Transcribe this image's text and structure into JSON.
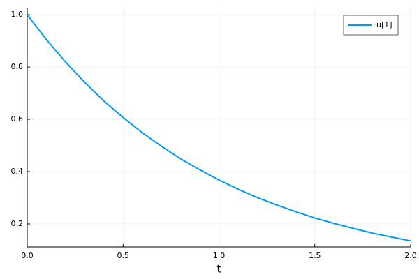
{
  "chart_data": {
    "type": "line",
    "xlabel": "t",
    "x": [
      0,
      0.1,
      0.2,
      0.3,
      0.4,
      0.5,
      0.6,
      0.7,
      0.8,
      0.9,
      1.0,
      1.1,
      1.2,
      1.3,
      1.4,
      1.5,
      1.6,
      1.7,
      1.8,
      1.9,
      2.0
    ],
    "series": [
      {
        "name": "u[1]",
        "color": "#009af9",
        "values": [
          1.0,
          0.905,
          0.819,
          0.741,
          0.67,
          0.607,
          0.549,
          0.497,
          0.449,
          0.407,
          0.368,
          0.333,
          0.301,
          0.273,
          0.247,
          0.223,
          0.202,
          0.183,
          0.165,
          0.15,
          0.135
        ]
      }
    ],
    "xlim": [
      0,
      2
    ],
    "ylim": [
      0.112,
      1.027
    ],
    "xticks": [
      {
        "value": 0,
        "label": "0.0"
      },
      0.5,
      {
        "value": 1,
        "label": "1.0"
      },
      1.5,
      {
        "value": 2,
        "label": "2.0"
      }
    ],
    "yticks": [
      0.2,
      0.4,
      0.6,
      0.8,
      {
        "value": 1,
        "label": "1.0"
      }
    ],
    "grid": true,
    "legend": "top-right"
  }
}
